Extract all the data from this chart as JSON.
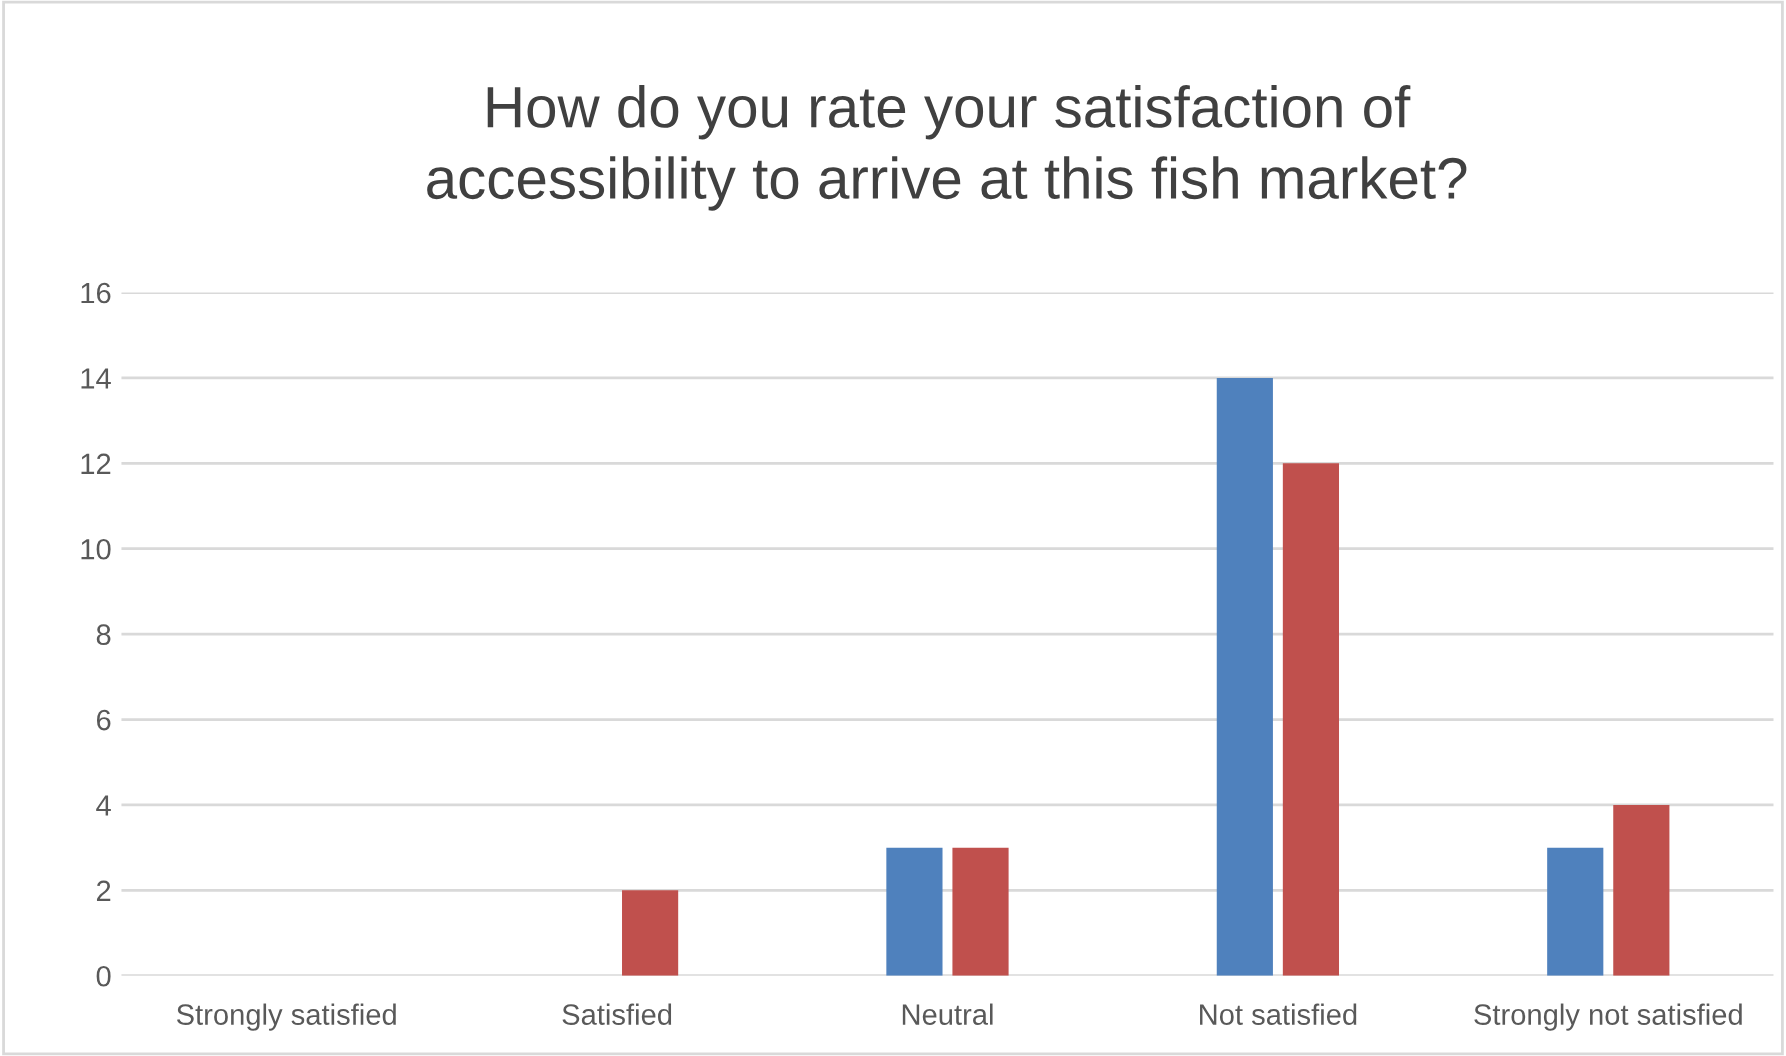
{
  "chart_data": {
    "type": "bar",
    "title": "How do you rate your satisfaction of\naccessibility to arrive at this fish market?",
    "categories": [
      "Strongly satisfied",
      "Satisfied",
      "Neutral",
      "Not satisfied",
      "Strongly not satisfied"
    ],
    "series": [
      {
        "color": "#4f81bd",
        "values": [
          0,
          0,
          3,
          14,
          3
        ]
      },
      {
        "color": "#c0504d",
        "values": [
          0,
          2,
          3,
          12,
          4
        ]
      }
    ],
    "ylim": [
      0,
      16
    ],
    "yticks": [
      0,
      2,
      4,
      6,
      8,
      10,
      12,
      14,
      16
    ],
    "grid": "y"
  }
}
